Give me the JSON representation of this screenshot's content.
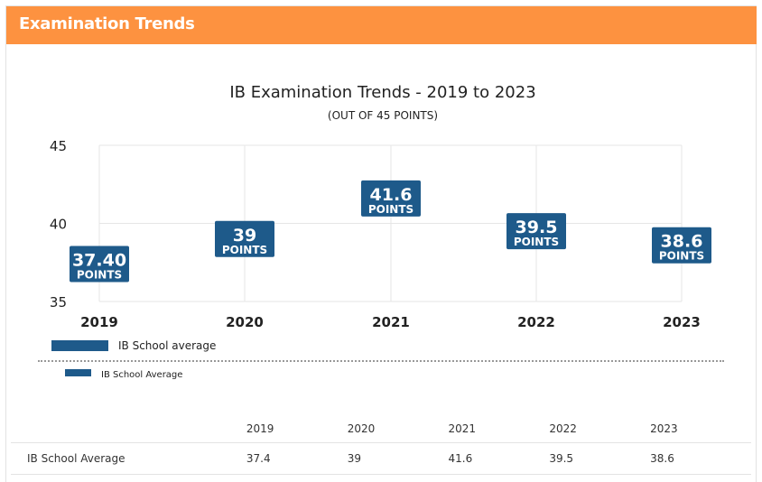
{
  "panel": {
    "title": "Examination Trends"
  },
  "chart_data": {
    "type": "bar",
    "title": "IB Examination Trends - 2019 to 2023",
    "subtitle": "(OUT OF 45 POINTS)",
    "categories": [
      "2019",
      "2020",
      "2021",
      "2022",
      "2023"
    ],
    "series": [
      {
        "name": "IB School average",
        "values": [
          37.4,
          39,
          41.6,
          39.5,
          38.6
        ],
        "color": "#1e5a8a"
      }
    ],
    "data_labels": [
      "37.40",
      "39",
      "41.6",
      "39.5",
      "38.6"
    ],
    "data_label_unit": "POINTS",
    "ylim": [
      35,
      45
    ],
    "yticks": [
      "35",
      "40",
      "45"
    ],
    "grid": true,
    "legend": "bottom-left"
  },
  "legend2": {
    "label": "IB School Average",
    "color": "#1e5a8a"
  },
  "table": {
    "headers": [
      "",
      "2019",
      "2020",
      "2021",
      "2022",
      "2023"
    ],
    "rows": [
      {
        "name": "IB School Average",
        "values": [
          "37.4",
          "39",
          "41.6",
          "39.5",
          "38.6"
        ]
      }
    ]
  }
}
